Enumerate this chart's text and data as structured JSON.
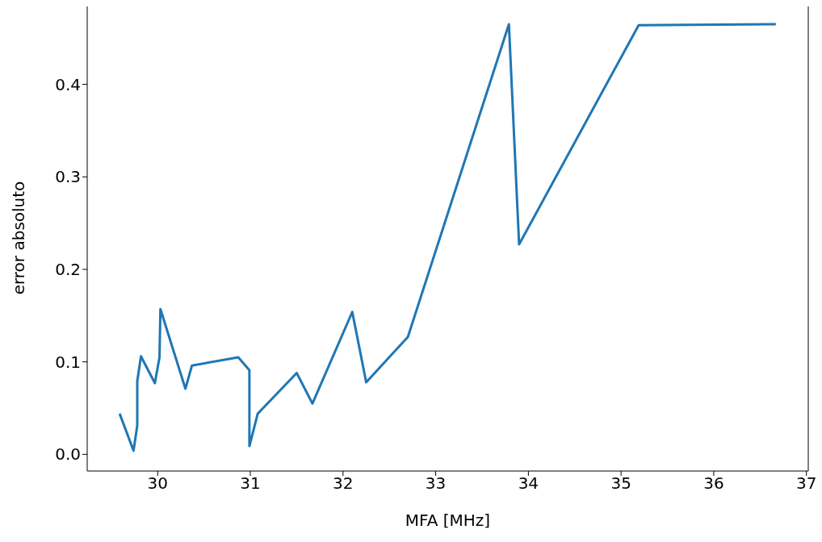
{
  "chart_data": {
    "type": "line",
    "xlabel": "MFA [MHz]",
    "ylabel": "error absoluto",
    "x": [
      29.59,
      29.74,
      29.78,
      29.78,
      29.82,
      29.97,
      30.02,
      30.03,
      30.3,
      30.37,
      30.87,
      30.99,
      30.99,
      31.08,
      31.5,
      31.67,
      32.1,
      32.25,
      32.7,
      33.79,
      33.9,
      35.19,
      36.67
    ],
    "series": [
      {
        "color": "#1f77b4",
        "values": [
          0.044,
          0.004,
          0.031,
          0.079,
          0.106,
          0.077,
          0.105,
          0.157,
          0.071,
          0.096,
          0.105,
          0.091,
          0.009,
          0.044,
          0.088,
          0.055,
          0.154,
          0.078,
          0.127,
          0.465,
          0.227,
          0.464,
          0.465
        ]
      }
    ],
    "xlim": [
      29.24,
      37.02
    ],
    "xticks": [
      30,
      31,
      32,
      33,
      34,
      35,
      36,
      37
    ],
    "ylim": [
      -0.018,
      0.486
    ],
    "yticks": [
      {
        "value": 0,
        "label": "0.0"
      },
      {
        "value": 0.1,
        "label": "0.1"
      },
      {
        "value": 0.2,
        "label": "0.2"
      },
      {
        "value": 0.3,
        "label": "0.3"
      },
      {
        "value": 0.4,
        "label": "0.4"
      }
    ],
    "grid": false,
    "legend": false,
    "marker": "none",
    "line_style": "solid"
  }
}
